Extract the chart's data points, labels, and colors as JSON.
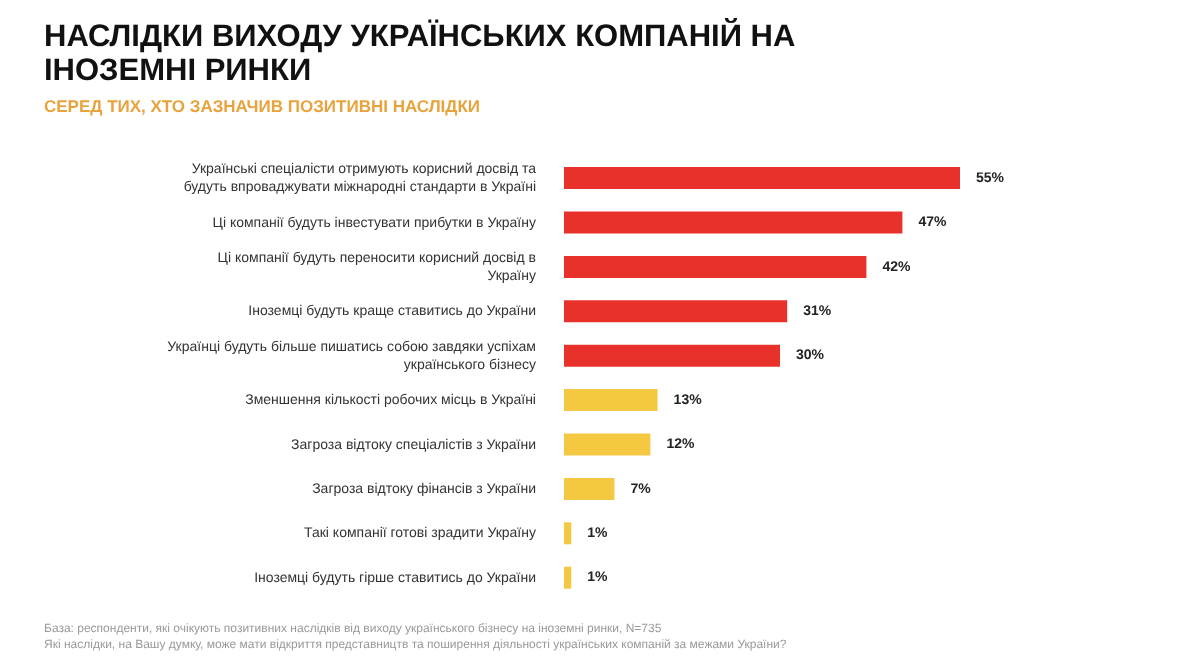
{
  "chart_data": {
    "type": "bar",
    "orientation": "horizontal",
    "title": "НАСЛІДКИ ВИХОДУ УКРАЇНСЬКИХ КОМПАНІЙ НА ІНОЗЕМНІ РИНКИ",
    "subtitle": "СЕРЕД ТИХ, ХТО ЗАЗНАЧИВ ПОЗИТИВНІ НАСЛІДКИ",
    "categories": [
      "Українські спеціалісти отримують корисний досвід та будуть впроваджувати міжнародні стандарти в Україні",
      "Ці компанії будуть інвестувати прибутки в Україну",
      "Ці компанії будуть переносити корисний досвід в Україну",
      "Іноземці будуть краще ставитись до України",
      "Українці будуть більше пишатись собою завдяки успіхам українського бізнесу",
      "Зменшення кількості робочих місць в Україні",
      "Загроза відтоку спеціалістів з України",
      "Загроза відтоку фінансів з України",
      "Такі компанії готові зрадити Україну",
      "Іноземці будуть гірше ставитись до України"
    ],
    "values": [
      55,
      47,
      42,
      31,
      30,
      13,
      12,
      7,
      1,
      1
    ],
    "colors": [
      "#e8312a",
      "#e8312a",
      "#e8312a",
      "#e8312a",
      "#e8312a",
      "#f5c842",
      "#f5c842",
      "#f5c842",
      "#f5c842",
      "#f5c842"
    ],
    "value_labels": [
      "55%",
      "47%",
      "42%",
      "31%",
      "30%",
      "13%",
      "12%",
      "7%",
      "1%",
      "1%"
    ],
    "annotations": [
      "База: респонденти, які очікують позитивних наслідків від виходу українського бізнесу на іноземні ринки, N=735",
      "Які наслідки, на Вашу думку, може мати відкриття представництв та поширення діяльності українських компаній за межами України?"
    ]
  }
}
